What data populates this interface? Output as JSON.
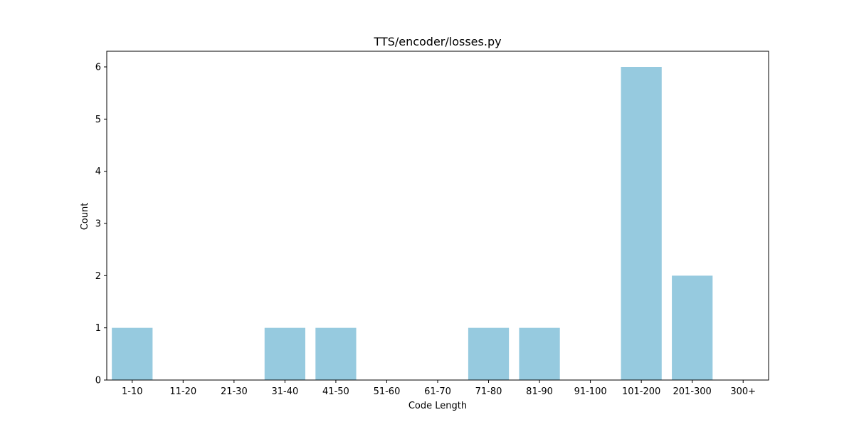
{
  "chart_data": {
    "type": "bar",
    "title": "TTS/encoder/losses.py",
    "xlabel": "Code Length",
    "ylabel": "Count",
    "categories": [
      "1-10",
      "11-20",
      "21-30",
      "31-40",
      "41-50",
      "51-60",
      "61-70",
      "71-80",
      "81-90",
      "91-100",
      "101-200",
      "201-300",
      "300+"
    ],
    "values": [
      1,
      0,
      0,
      1,
      1,
      0,
      0,
      1,
      1,
      0,
      6,
      2,
      0
    ],
    "ylim": [
      0,
      6.3
    ],
    "yticks": [
      0,
      1,
      2,
      3,
      4,
      5,
      6
    ],
    "grid": false,
    "legend": "none",
    "bar_color": "#96cadf"
  }
}
